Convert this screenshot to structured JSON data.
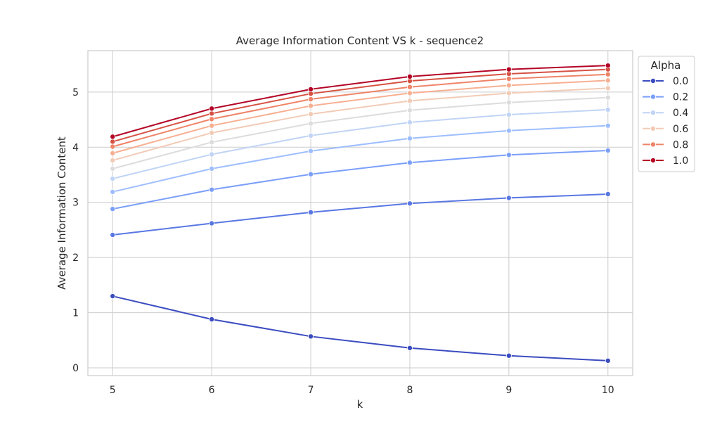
{
  "chart_data": {
    "type": "line",
    "title": "Average Information Content VS k - sequence2",
    "xlabel": "k",
    "ylabel": "Average Information Content",
    "x": [
      5,
      6,
      7,
      8,
      9,
      10
    ],
    "xlim": [
      4.75,
      10.25
    ],
    "ylim": [
      -0.14,
      5.75
    ],
    "xticks": [
      5,
      6,
      7,
      8,
      9,
      10
    ],
    "yticks": [
      0,
      1,
      2,
      3,
      4,
      5
    ],
    "grid": true,
    "legend": {
      "title": "Alpha",
      "placement": "upper right, outside plot",
      "entries": [
        "0.0",
        "0.2",
        "0.4",
        "0.6",
        "0.8",
        "1.0"
      ]
    },
    "series": [
      {
        "values": [
          1.3,
          0.88,
          0.57,
          0.36,
          0.22,
          0.13
        ],
        "color": "#3b4cc0"
      },
      {
        "values": [
          2.41,
          2.62,
          2.82,
          2.98,
          3.08,
          3.15
        ],
        "color": "#5977e3"
      },
      {
        "values": [
          2.88,
          3.23,
          3.51,
          3.72,
          3.86,
          3.94
        ],
        "color": "#7b9ff9"
      },
      {
        "values": [
          3.19,
          3.61,
          3.93,
          4.16,
          4.3,
          4.39
        ],
        "color": "#9ebeff"
      },
      {
        "values": [
          3.43,
          3.87,
          4.21,
          4.45,
          4.59,
          4.68
        ],
        "color": "#c0d4f5"
      },
      {
        "values": [
          3.61,
          4.09,
          4.43,
          4.67,
          4.81,
          4.9
        ],
        "color": "#dddcdc"
      },
      {
        "values": [
          3.76,
          4.26,
          4.6,
          4.84,
          4.98,
          5.07
        ],
        "color": "#f2cbb7"
      },
      {
        "values": [
          3.89,
          4.39,
          4.75,
          4.98,
          5.12,
          5.21
        ],
        "color": "#f7af91"
      },
      {
        "values": [
          4.01,
          4.51,
          4.87,
          5.09,
          5.24,
          5.32
        ],
        "color": "#ee8468"
      },
      {
        "values": [
          4.1,
          4.61,
          4.97,
          5.2,
          5.33,
          5.41
        ],
        "color": "#d65244"
      },
      {
        "values": [
          4.19,
          4.7,
          5.05,
          5.28,
          5.41,
          5.48
        ],
        "color": "#b40426"
      }
    ],
    "legend_series_index": [
      0,
      2,
      4,
      6,
      8,
      10
    ]
  }
}
